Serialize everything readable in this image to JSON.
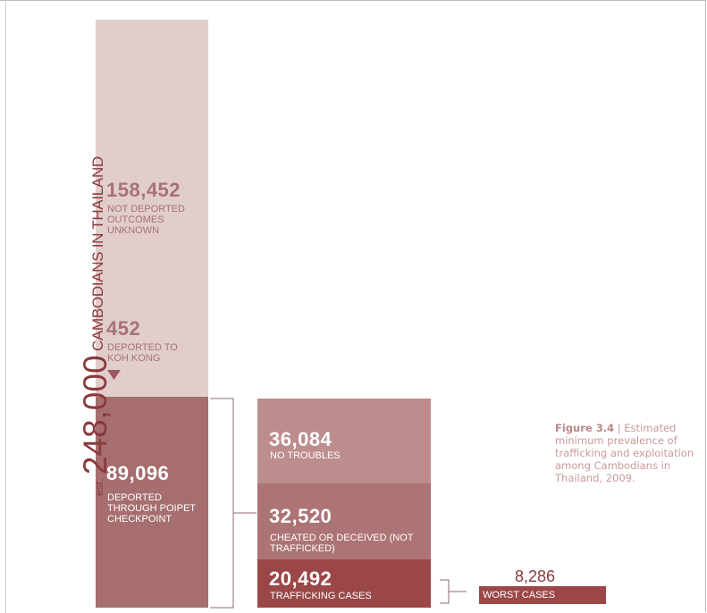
{
  "chart_data": {
    "type": "bar",
    "title": "",
    "total": {
      "prefix": "est.",
      "value": "248,000",
      "label": "CAMBODIANS IN THAILAND"
    },
    "main_column": [
      {
        "value": "158,452",
        "label": "NOT DEPORTED OUTCOMES UNKNOWN",
        "num": 158452
      },
      {
        "value": "452",
        "label": "DEPORTED TO KOH KONG",
        "num": 452
      },
      {
        "value": "89,096",
        "label": "DEPORTED THROUGH POIPET CHECKPOINT",
        "num": 89096
      }
    ],
    "breakdown_column": [
      {
        "value": "36,084",
        "label": "NO TROUBLES",
        "num": 36084
      },
      {
        "value": "32,520",
        "label": "CHEATED OR DECEIVED (NOT TRAFFICKED)",
        "num": 32520
      },
      {
        "value": "20,492",
        "label": "TRAFFICKING CASES",
        "num": 20492
      }
    ],
    "worst": {
      "value": "8,286",
      "label": "WORST CASES",
      "num": 8286
    },
    "caption": {
      "figure": "Figure 3.4",
      "separator": "|",
      "text": "Estimated minimum prevalence of trafficking and exploitation among Cambodians in Thailand, 2009."
    },
    "colors": {
      "light": "#e2cdcd",
      "medium": "#a66e6f",
      "breakdown_light": "#bd8d8e",
      "breakdown_mid": "#ad7475",
      "dark": "#9b4748",
      "text_dark": "#8a3a3c",
      "label_light": "#a77273"
    }
  }
}
